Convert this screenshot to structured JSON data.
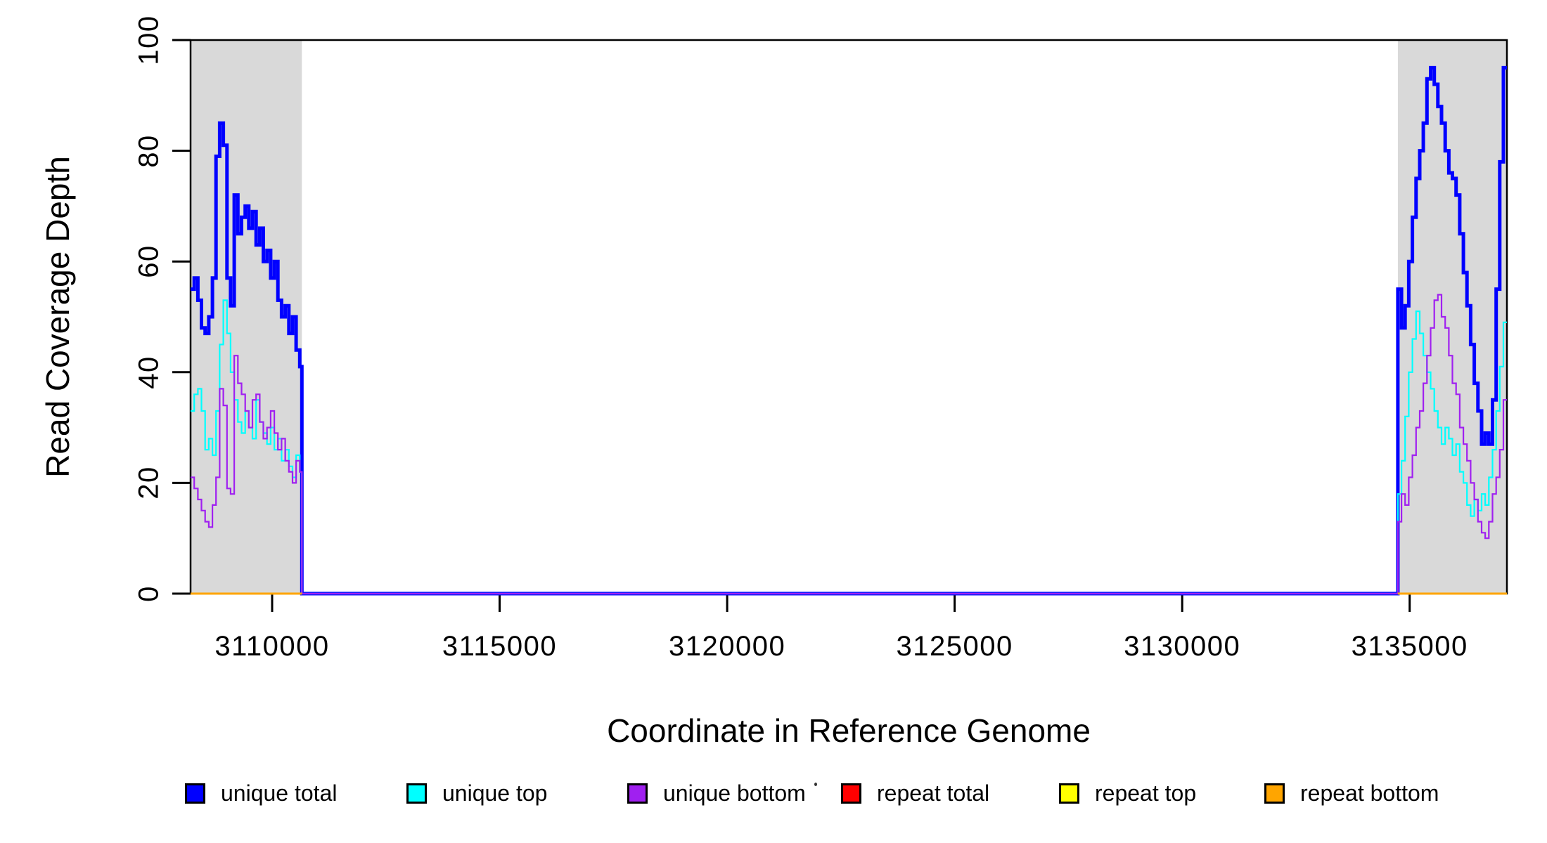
{
  "chart_data": {
    "type": "line",
    "subtype": "step",
    "title": "",
    "xlabel": "Coordinate in Reference Genome",
    "ylabel": "Read Coverage Depth",
    "x_range": [
      3108208,
      3137137
    ],
    "y_range": [
      0,
      100
    ],
    "x_ticks": [
      3110000,
      3115000,
      3120000,
      3125000,
      3130000,
      3135000
    ],
    "y_ticks": [
      0,
      20,
      40,
      60,
      80,
      100
    ],
    "grid": false,
    "background_color": "#ffffff",
    "box_color": "#000000",
    "shaded_regions": [
      {
        "x0": 3108208,
        "x1": 3110655,
        "color": "#d9d9d9"
      },
      {
        "x0": 3134740,
        "x1": 3137137,
        "color": "#d9d9d9"
      }
    ],
    "legend_position": "bottom",
    "series": [
      {
        "name": "unique total",
        "color": "#0000ff",
        "line_width": 5,
        "zero_between_segments": true,
        "segments": [
          {
            "x0": 3108208,
            "dx": 80,
            "x_end": 3110655,
            "values": [
              55,
              57,
              53,
              48,
              47,
              50,
              57,
              79,
              85,
              81,
              57,
              52,
              72,
              65,
              68,
              70,
              66,
              69,
              63,
              66,
              60,
              62,
              57,
              60,
              53,
              50,
              52,
              47,
              50,
              44,
              41
            ]
          },
          {
            "x0": 3134740,
            "dx": 80,
            "x_end": 3137137,
            "values": [
              55,
              48,
              52,
              60,
              68,
              75,
              80,
              85,
              93,
              95,
              92,
              88,
              85,
              80,
              76,
              75,
              72,
              65,
              58,
              52,
              45,
              38,
              33,
              27,
              29,
              27,
              35,
              55,
              78,
              95
            ]
          }
        ]
      },
      {
        "name": "unique top",
        "color": "#00ffff",
        "line_width": 2.2,
        "zero_between_segments": true,
        "segments": [
          {
            "x0": 3108208,
            "dx": 80,
            "x_end": 3110655,
            "values": [
              33,
              36,
              37,
              33,
              26,
              28,
              25,
              33,
              45,
              53,
              47,
              40,
              35,
              31,
              29,
              33,
              30,
              28,
              35,
              31,
              29,
              27,
              30,
              26,
              28,
              24,
              26,
              23,
              21,
              25,
              22
            ]
          },
          {
            "x0": 3134740,
            "dx": 80,
            "x_end": 3137137,
            "values": [
              18,
              24,
              32,
              40,
              46,
              51,
              47,
              43,
              40,
              37,
              33,
              30,
              27,
              30,
              28,
              25,
              27,
              22,
              20,
              16,
              14,
              17,
              15,
              18,
              16,
              21,
              26,
              33,
              41,
              49
            ]
          }
        ]
      },
      {
        "name": "unique bottom",
        "color": "#a020f0",
        "line_width": 2.2,
        "zero_between_segments": true,
        "segments": [
          {
            "x0": 3108208,
            "dx": 80,
            "x_end": 3110655,
            "values": [
              21,
              19,
              17,
              15,
              13,
              12,
              16,
              21,
              37,
              34,
              19,
              18,
              43,
              38,
              36,
              33,
              30,
              35,
              36,
              31,
              28,
              30,
              33,
              29,
              26,
              28,
              24,
              22,
              20,
              24,
              22
            ]
          },
          {
            "x0": 3134740,
            "dx": 80,
            "x_end": 3137137,
            "values": [
              13,
              18,
              16,
              21,
              25,
              30,
              33,
              38,
              43,
              48,
              53,
              54,
              50,
              48,
              43,
              38,
              36,
              30,
              27,
              24,
              20,
              17,
              13,
              11,
              10,
              13,
              18,
              21,
              26,
              35
            ]
          }
        ]
      },
      {
        "name": "repeat total",
        "color": "#ff0000",
        "line_width": 2.5,
        "zero_between_segments": false,
        "segments": [
          {
            "x0": 3108208,
            "dx": 2447,
            "x_end": 3110655,
            "values": [
              0
            ]
          },
          {
            "x0": 3134740,
            "dx": 2397,
            "x_end": 3137137,
            "values": [
              0
            ]
          }
        ]
      },
      {
        "name": "repeat top",
        "color": "#ffff00",
        "line_width": 2.5,
        "zero_between_segments": false,
        "segments": [
          {
            "x0": 3108208,
            "dx": 2447,
            "x_end": 3110655,
            "values": [
              0
            ]
          },
          {
            "x0": 3134740,
            "dx": 2397,
            "x_end": 3137137,
            "values": [
              0
            ]
          }
        ]
      },
      {
        "name": "repeat bottom",
        "color": "#ffa500",
        "line_width": 3,
        "zero_between_segments": false,
        "segments": [
          {
            "x0": 3108208,
            "dx": 2447,
            "x_end": 3110655,
            "values": [
              0
            ]
          },
          {
            "x0": 3134740,
            "dx": 2397,
            "x_end": 3137137,
            "values": [
              0
            ]
          }
        ]
      }
    ]
  }
}
